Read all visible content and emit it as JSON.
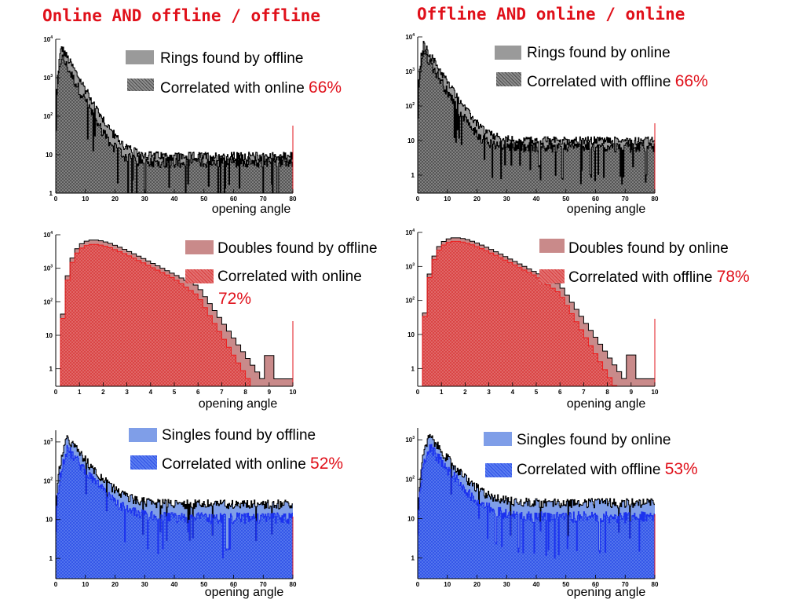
{
  "titles": {
    "left": "Online AND offline / offline",
    "right": "Offline AND online / online"
  },
  "colors": {
    "title": "#e0101a",
    "rings_fill": "#9a9a9a",
    "rings_fill_dark": "#6f6f6f",
    "doubles_fill": "#c98a8a",
    "doubles_fill_dark": "#e05a5a",
    "doubles_line": "#ee1c1c",
    "singles_fill": "#7f9ee8",
    "singles_fill_dark": "#3b64e8",
    "singles_line": "#1c32ee"
  },
  "legends": [
    {
      "found": "Rings found by offline",
      "corr": "Correlated with online",
      "pct": "66%"
    },
    {
      "found": "Rings found by online",
      "corr": "Correlated with offline",
      "pct": "66%"
    },
    {
      "found": "Doubles found by offline",
      "corr": "Correlated with online",
      "pct": "72%"
    },
    {
      "found": "Doubles found by online",
      "corr": "Correlated with offline",
      "pct": "78%"
    },
    {
      "found": "Singles found by offline",
      "corr": "Correlated with online",
      "pct": "52%"
    },
    {
      "found": "Singles found by online",
      "corr": "Correlated with offline",
      "pct": "53%"
    }
  ],
  "chart_data": [
    {
      "type": "histogram",
      "panel": "rings-offline",
      "xlabel": "opening angle",
      "xlim": [
        0,
        80
      ],
      "ylim": [
        1,
        10000
      ],
      "yscale": "log",
      "xticks": [
        "0",
        "10",
        "20",
        "30",
        "40",
        "50",
        "60",
        "70",
        "80"
      ],
      "yticks": [
        "1",
        "10",
        "10^2",
        "10^3",
        "10^4"
      ],
      "peak_x": 2,
      "series": [
        {
          "name": "Rings found by offline",
          "peak": 6000,
          "tail": 9,
          "decay": 3.2
        },
        {
          "name": "Correlated with online",
          "peak": 3800,
          "tail": 7,
          "decay": 3.0
        }
      ]
    },
    {
      "type": "histogram",
      "panel": "rings-online",
      "xlabel": "opening angle",
      "xlim": [
        0,
        80
      ],
      "ylim": [
        0.3,
        10000
      ],
      "yscale": "log",
      "xticks": [
        "0",
        "10",
        "20",
        "30",
        "40",
        "50",
        "60",
        "70",
        "80"
      ],
      "yticks": [
        "1",
        "10",
        "10^2",
        "10^3",
        "10^4"
      ],
      "peak_x": 2,
      "series": [
        {
          "name": "Rings found by online",
          "peak": 6000,
          "tail": 10,
          "decay": 3.2
        },
        {
          "name": "Correlated with offline",
          "peak": 4000,
          "tail": 7,
          "decay": 3.0
        }
      ]
    },
    {
      "type": "histogram",
      "panel": "doubles-offline",
      "xlabel": "opening angle",
      "xlim": [
        0,
        10
      ],
      "ylim": [
        0.3,
        10000
      ],
      "yscale": "log",
      "xticks": [
        "0",
        "1",
        "2",
        "3",
        "4",
        "5",
        "6",
        "7",
        "8",
        "9",
        "10"
      ],
      "yticks": [
        "1",
        "10",
        "10^2",
        "10^3",
        "10^4"
      ],
      "series": [
        {
          "name": "Doubles found by offline",
          "peak": 7000,
          "peak_x": 1.6
        },
        {
          "name": "Correlated with online",
          "peak": 5200,
          "peak_x": 1.6
        }
      ]
    },
    {
      "type": "histogram",
      "panel": "doubles-online",
      "xlabel": "opening angle",
      "xlim": [
        0,
        10
      ],
      "ylim": [
        0.3,
        10000
      ],
      "yscale": "log",
      "xticks": [
        "0",
        "1",
        "2",
        "3",
        "4",
        "5",
        "6",
        "7",
        "8",
        "9",
        "10"
      ],
      "yticks": [
        "1",
        "10",
        "10^2",
        "10^3",
        "10^4"
      ],
      "series": [
        {
          "name": "Doubles found by online",
          "peak": 7000,
          "peak_x": 1.6
        },
        {
          "name": "Correlated with offline",
          "peak": 5500,
          "peak_x": 1.6
        }
      ]
    },
    {
      "type": "histogram",
      "panel": "singles-offline",
      "xlabel": "opening angle",
      "xlim": [
        0,
        80
      ],
      "ylim": [
        0.3,
        2000
      ],
      "yscale": "log",
      "xticks": [
        "0",
        "10",
        "20",
        "30",
        "40",
        "50",
        "60",
        "70",
        "80"
      ],
      "yticks": [
        "1",
        "10",
        "10^2",
        "10^3"
      ],
      "peak_x": 4,
      "series": [
        {
          "name": "Singles found by offline",
          "peak": 1200,
          "tail": 25,
          "decay": 4.5
        },
        {
          "name": "Correlated with online",
          "peak": 700,
          "tail": 12,
          "decay": 4.5
        }
      ]
    },
    {
      "type": "histogram",
      "panel": "singles-online",
      "xlabel": "opening angle",
      "xlim": [
        0,
        80
      ],
      "ylim": [
        0.3,
        2000
      ],
      "yscale": "log",
      "xticks": [
        "0",
        "10",
        "20",
        "30",
        "40",
        "50",
        "60",
        "70",
        "80"
      ],
      "yticks": [
        "1",
        "10",
        "10^2",
        "10^3"
      ],
      "peak_x": 4,
      "series": [
        {
          "name": "Singles found by online",
          "peak": 1200,
          "tail": 25,
          "decay": 4.5
        },
        {
          "name": "Correlated with offline",
          "peak": 700,
          "tail": 12,
          "decay": 4.5
        }
      ]
    }
  ]
}
